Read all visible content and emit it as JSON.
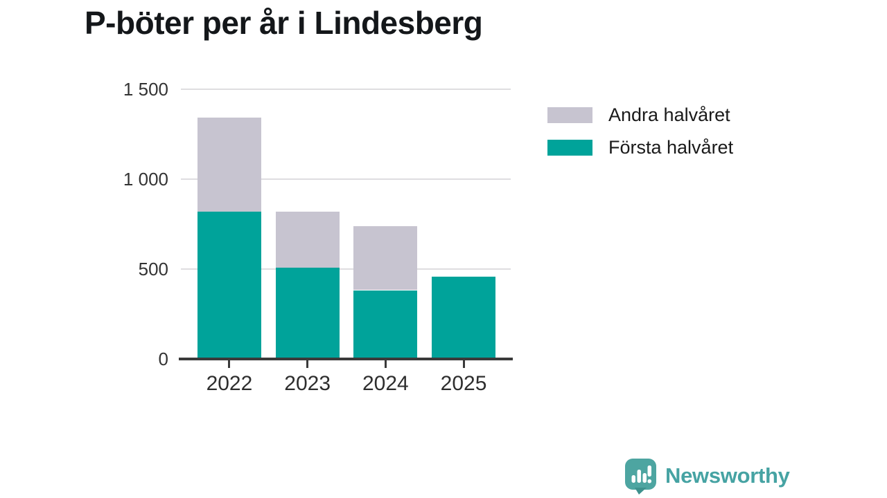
{
  "title": "P-böter per år i Lindesberg",
  "legend": {
    "items": [
      {
        "label": "Andra halvåret",
        "color": "#c7c4d0"
      },
      {
        "label": "Första halvåret",
        "color": "#00a39a"
      }
    ]
  },
  "chart_data": {
    "type": "bar",
    "stacked": true,
    "title": "P-böter per år i Lindesberg",
    "xlabel": "",
    "ylabel": "",
    "categories": [
      "2022",
      "2023",
      "2024",
      "2025"
    ],
    "series": [
      {
        "name": "Första halvåret",
        "color": "#00a39a",
        "values": [
          810,
          500,
          375,
          450
        ]
      },
      {
        "name": "Andra halvåret",
        "color": "#c7c4d0",
        "values": [
          525,
          310,
          355,
          0
        ]
      }
    ],
    "totals": [
      1335,
      810,
      730,
      450
    ],
    "ylim": [
      0,
      1500
    ],
    "yticks": [
      {
        "value": 0,
        "label": "0"
      },
      {
        "value": 500,
        "label": "500"
      },
      {
        "value": 1000,
        "label": "1 000"
      },
      {
        "value": 1500,
        "label": "1 500"
      }
    ],
    "grid": true,
    "legend_position": "top-right"
  },
  "branding": {
    "name": "Newsworthy",
    "icon": "bar-chart-speech-bubble-icon",
    "bubble_color": "#4da5a1",
    "tail_color": "#3e918d",
    "text_color": "#46a3a3"
  },
  "colors": {
    "axis": "#3a3a3a",
    "gridline": "#dedde0",
    "title_text": "#14171a",
    "label_text": "#333333",
    "background": "#ffffff"
  }
}
